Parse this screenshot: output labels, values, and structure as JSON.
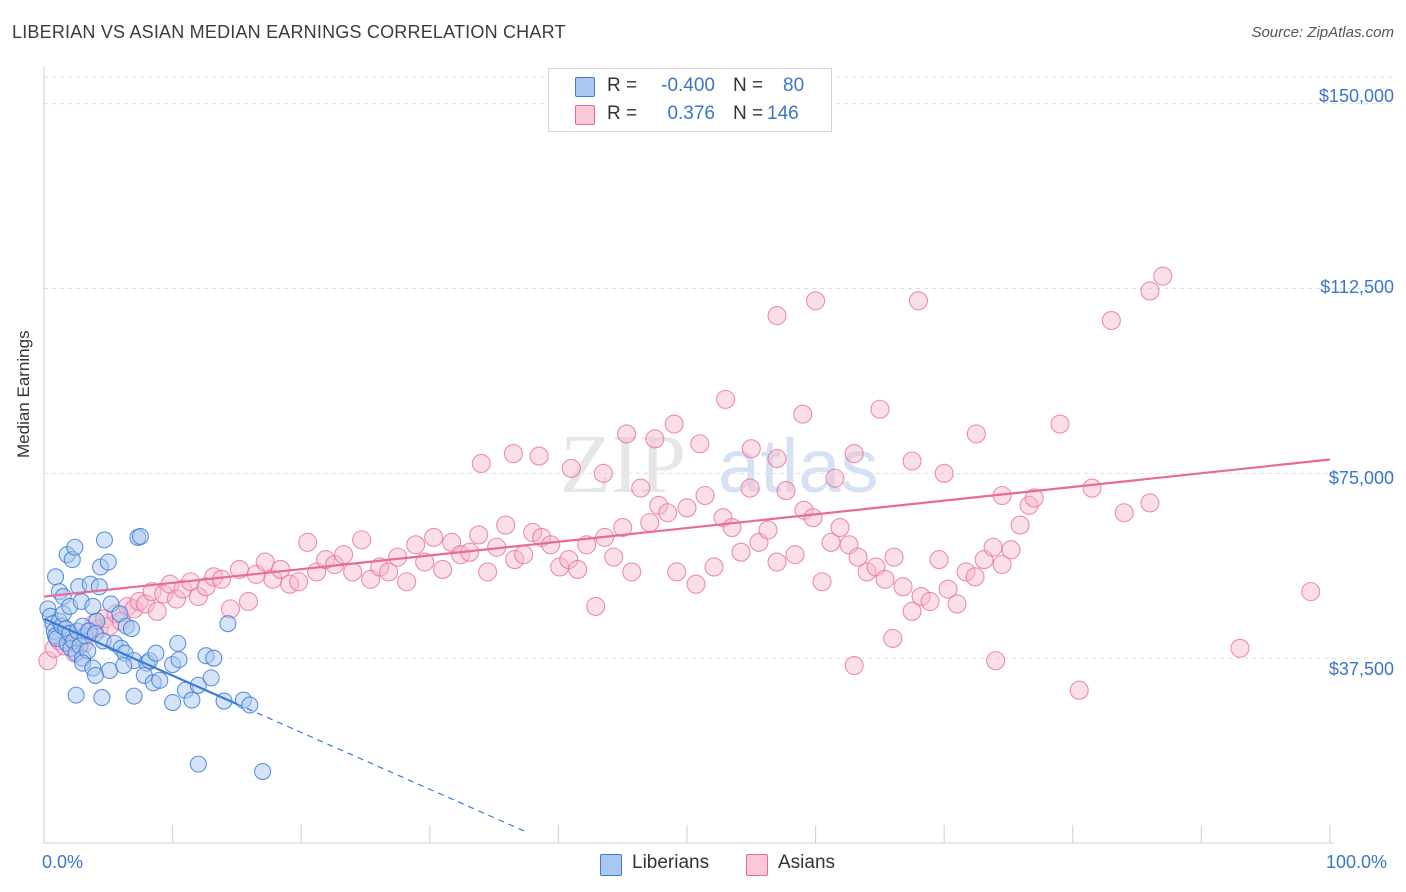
{
  "header": {
    "title": "LIBERIAN VS ASIAN MEDIAN EARNINGS CORRELATION CHART",
    "source": "Source: ZipAtlas.com"
  },
  "watermark": {
    "zip": "ZIP",
    "atlas": "atlas"
  },
  "legend": {
    "r_label": "R =",
    "n_label": "N =",
    "liberians": {
      "r": "-0.400",
      "n": "80"
    },
    "asians": {
      "r": "0.376",
      "n": "146"
    }
  },
  "colors": {
    "blue": "#3a7bd5",
    "blue_fill": "#a9c8f0",
    "pink": "#e8699a",
    "pink_fill": "#f5b8cc",
    "tick_text": "#3a76c8"
  },
  "chart_data": {
    "type": "scatter",
    "title": "LIBERIAN VS ASIAN MEDIAN EARNINGS CORRELATION CHART",
    "xlabel": "",
    "ylabel": "Median Earnings",
    "xlim": [
      0,
      100
    ],
    "ylim": [
      0,
      155000
    ],
    "x_tick_labels": [
      "0.0%",
      "100.0%"
    ],
    "y_ticks": [
      37500,
      75000,
      112500,
      150000
    ],
    "y_tick_labels": [
      "$37,500",
      "$75,000",
      "$112,500",
      "$150,000"
    ],
    "grid": true,
    "legend_position": "top-center",
    "series": [
      {
        "name": "Liberians",
        "r": -0.4,
        "n": 80,
        "trend": {
          "x_start": 0,
          "y_start": 45500,
          "x_solid_end": 15,
          "y_solid_end": 28200,
          "x_dashed_end": 37.5
        },
        "points": [
          [
            0.3,
            47500
          ],
          [
            0.5,
            46000
          ],
          [
            0.7,
            44500
          ],
          [
            0.8,
            43000
          ],
          [
            0.9,
            42000
          ],
          [
            1.0,
            41500
          ],
          [
            1.2,
            45000
          ],
          [
            1.4,
            44000
          ],
          [
            1.5,
            46500
          ],
          [
            1.7,
            43500
          ],
          [
            1.8,
            40500
          ],
          [
            2.0,
            42500
          ],
          [
            2.1,
            39500
          ],
          [
            2.3,
            41000
          ],
          [
            2.5,
            38500
          ],
          [
            2.6,
            43000
          ],
          [
            2.8,
            40000
          ],
          [
            3.0,
            37500
          ],
          [
            3.2,
            42000
          ],
          [
            3.4,
            39000
          ],
          [
            0.9,
            54000
          ],
          [
            1.2,
            51000
          ],
          [
            1.5,
            50000
          ],
          [
            1.8,
            58500
          ],
          [
            2.2,
            57500
          ],
          [
            2.4,
            60000
          ],
          [
            2.7,
            52000
          ],
          [
            3.6,
            52500
          ],
          [
            4.3,
            52000
          ],
          [
            5.2,
            48500
          ],
          [
            4.4,
            56000
          ],
          [
            4.7,
            61500
          ],
          [
            5.0,
            57000
          ],
          [
            7.3,
            62000
          ],
          [
            7.5,
            62200
          ],
          [
            2.0,
            48000
          ],
          [
            2.9,
            49000
          ],
          [
            3.8,
            48000
          ],
          [
            4.1,
            45000
          ],
          [
            5.9,
            46500
          ],
          [
            6.4,
            44000
          ],
          [
            6.8,
            43500
          ],
          [
            3.0,
            44000
          ],
          [
            3.5,
            43000
          ],
          [
            4.0,
            42500
          ],
          [
            4.6,
            41000
          ],
          [
            5.5,
            40500
          ],
          [
            6.0,
            39500
          ],
          [
            6.3,
            38500
          ],
          [
            7.0,
            37000
          ],
          [
            8.0,
            36500
          ],
          [
            8.2,
            37000
          ],
          [
            10.0,
            36200
          ],
          [
            10.5,
            37200
          ],
          [
            7.8,
            34000
          ],
          [
            8.5,
            32500
          ],
          [
            9.0,
            33000
          ],
          [
            11.0,
            31000
          ],
          [
            12.0,
            32000
          ],
          [
            13.0,
            33500
          ],
          [
            2.5,
            30000
          ],
          [
            4.5,
            29500
          ],
          [
            7.0,
            29800
          ],
          [
            10.0,
            28500
          ],
          [
            11.5,
            29000
          ],
          [
            14.0,
            28800
          ],
          [
            15.5,
            29000
          ],
          [
            16.0,
            28000
          ],
          [
            12.0,
            16000
          ],
          [
            17.0,
            14500
          ],
          [
            3.0,
            36500
          ],
          [
            3.8,
            35500
          ],
          [
            5.1,
            35000
          ],
          [
            6.2,
            36000
          ],
          [
            4.0,
            34000
          ],
          [
            14.3,
            44500
          ],
          [
            10.4,
            40500
          ],
          [
            12.6,
            38000
          ],
          [
            13.2,
            37500
          ],
          [
            8.7,
            38500
          ]
        ]
      },
      {
        "name": "Asians",
        "r": 0.376,
        "n": 146,
        "trend": {
          "x_start": 0,
          "y_start": 50000,
          "x_end": 100,
          "y_end": 77800
        },
        "points": [
          [
            0.3,
            37000
          ],
          [
            0.8,
            39500
          ],
          [
            1.2,
            41000
          ],
          [
            1.6,
            40000
          ],
          [
            2.0,
            42500
          ],
          [
            2.4,
            38500
          ],
          [
            2.8,
            41500
          ],
          [
            3.1,
            40500
          ],
          [
            3.5,
            43000
          ],
          [
            3.9,
            44500
          ],
          [
            4.3,
            43500
          ],
          [
            4.7,
            45500
          ],
          [
            5.1,
            44000
          ],
          [
            5.6,
            46500
          ],
          [
            6.0,
            45000
          ],
          [
            6.5,
            48000
          ],
          [
            7.0,
            47500
          ],
          [
            7.4,
            49000
          ],
          [
            7.9,
            48500
          ],
          [
            8.4,
            51000
          ],
          [
            8.8,
            47000
          ],
          [
            9.3,
            50500
          ],
          [
            9.8,
            52500
          ],
          [
            10.3,
            49500
          ],
          [
            10.8,
            51500
          ],
          [
            11.4,
            53000
          ],
          [
            12.0,
            50000
          ],
          [
            12.6,
            52000
          ],
          [
            13.2,
            54000
          ],
          [
            13.8,
            53500
          ],
          [
            14.5,
            47500
          ],
          [
            15.2,
            55500
          ],
          [
            15.9,
            49000
          ],
          [
            16.5,
            54500
          ],
          [
            17.2,
            57000
          ],
          [
            17.8,
            53500
          ],
          [
            18.4,
            55500
          ],
          [
            19.1,
            52500
          ],
          [
            19.8,
            53000
          ],
          [
            20.5,
            61000
          ],
          [
            21.2,
            55000
          ],
          [
            21.9,
            57500
          ],
          [
            22.6,
            56500
          ],
          [
            23.3,
            58500
          ],
          [
            24.0,
            55000
          ],
          [
            24.7,
            61500
          ],
          [
            25.4,
            53500
          ],
          [
            26.1,
            56000
          ],
          [
            26.8,
            55000
          ],
          [
            27.5,
            58000
          ],
          [
            28.2,
            53000
          ],
          [
            28.9,
            60500
          ],
          [
            29.6,
            57000
          ],
          [
            30.3,
            62000
          ],
          [
            31.0,
            55500
          ],
          [
            31.7,
            61000
          ],
          [
            32.4,
            58500
          ],
          [
            33.1,
            59000
          ],
          [
            33.8,
            62500
          ],
          [
            34.5,
            55000
          ],
          [
            35.2,
            60000
          ],
          [
            35.9,
            64500
          ],
          [
            36.6,
            57500
          ],
          [
            37.3,
            58500
          ],
          [
            38.0,
            63000
          ],
          [
            38.7,
            62000
          ],
          [
            39.4,
            60500
          ],
          [
            40.1,
            56000
          ],
          [
            40.8,
            57500
          ],
          [
            41.5,
            55500
          ],
          [
            42.2,
            60500
          ],
          [
            42.9,
            48000
          ],
          [
            43.6,
            62000
          ],
          [
            44.3,
            58000
          ],
          [
            45.0,
            64000
          ],
          [
            45.7,
            55000
          ],
          [
            46.4,
            72000
          ],
          [
            47.1,
            65000
          ],
          [
            47.8,
            68500
          ],
          [
            48.5,
            67000
          ],
          [
            49.2,
            55000
          ],
          [
            50.0,
            68000
          ],
          [
            50.7,
            52500
          ],
          [
            51.4,
            70500
          ],
          [
            52.1,
            56000
          ],
          [
            52.8,
            66000
          ],
          [
            53.5,
            64000
          ],
          [
            54.2,
            59000
          ],
          [
            54.9,
            72000
          ],
          [
            55.6,
            61000
          ],
          [
            56.3,
            63500
          ],
          [
            57.0,
            57000
          ],
          [
            57.7,
            71500
          ],
          [
            58.4,
            58500
          ],
          [
            59.1,
            67500
          ],
          [
            59.8,
            66000
          ],
          [
            60.5,
            53000
          ],
          [
            61.2,
            61000
          ],
          [
            61.9,
            64000
          ],
          [
            62.6,
            60500
          ],
          [
            63.3,
            58000
          ],
          [
            64.0,
            55000
          ],
          [
            64.7,
            56000
          ],
          [
            65.4,
            53500
          ],
          [
            66.1,
            58000
          ],
          [
            66.8,
            52000
          ],
          [
            67.5,
            47000
          ],
          [
            68.2,
            50000
          ],
          [
            68.9,
            49000
          ],
          [
            69.6,
            57500
          ],
          [
            70.3,
            51500
          ],
          [
            71.0,
            48500
          ],
          [
            71.7,
            55000
          ],
          [
            72.4,
            54000
          ],
          [
            73.1,
            57500
          ],
          [
            73.8,
            60000
          ],
          [
            74.5,
            56500
          ],
          [
            75.2,
            59500
          ],
          [
            75.9,
            64500
          ],
          [
            76.6,
            68500
          ],
          [
            45.3,
            83000
          ],
          [
            47.5,
            82000
          ],
          [
            49.0,
            85000
          ],
          [
            51.0,
            81000
          ],
          [
            53.0,
            90000
          ],
          [
            55.0,
            80000
          ],
          [
            57.0,
            78000
          ],
          [
            59.0,
            87000
          ],
          [
            61.5,
            74000
          ],
          [
            63.0,
            79000
          ],
          [
            65.0,
            88000
          ],
          [
            67.5,
            77500
          ],
          [
            70.0,
            75000
          ],
          [
            72.5,
            83000
          ],
          [
            74.5,
            70500
          ],
          [
            77.0,
            70000
          ],
          [
            79.0,
            85000
          ],
          [
            81.5,
            72000
          ],
          [
            84.0,
            67000
          ],
          [
            86.0,
            69000
          ],
          [
            34.0,
            77000
          ],
          [
            36.5,
            79000
          ],
          [
            38.5,
            78500
          ],
          [
            41.0,
            76000
          ],
          [
            43.5,
            75000
          ],
          [
            57.0,
            107000
          ],
          [
            60.0,
            110000
          ],
          [
            68.0,
            110000
          ],
          [
            83.0,
            106000
          ],
          [
            86.0,
            112000
          ],
          [
            87.0,
            115000
          ],
          [
            93.0,
            39500
          ],
          [
            98.5,
            51000
          ],
          [
            80.5,
            31000
          ],
          [
            74.0,
            37000
          ],
          [
            63.0,
            36000
          ],
          [
            66.0,
            41500
          ]
        ]
      }
    ]
  }
}
